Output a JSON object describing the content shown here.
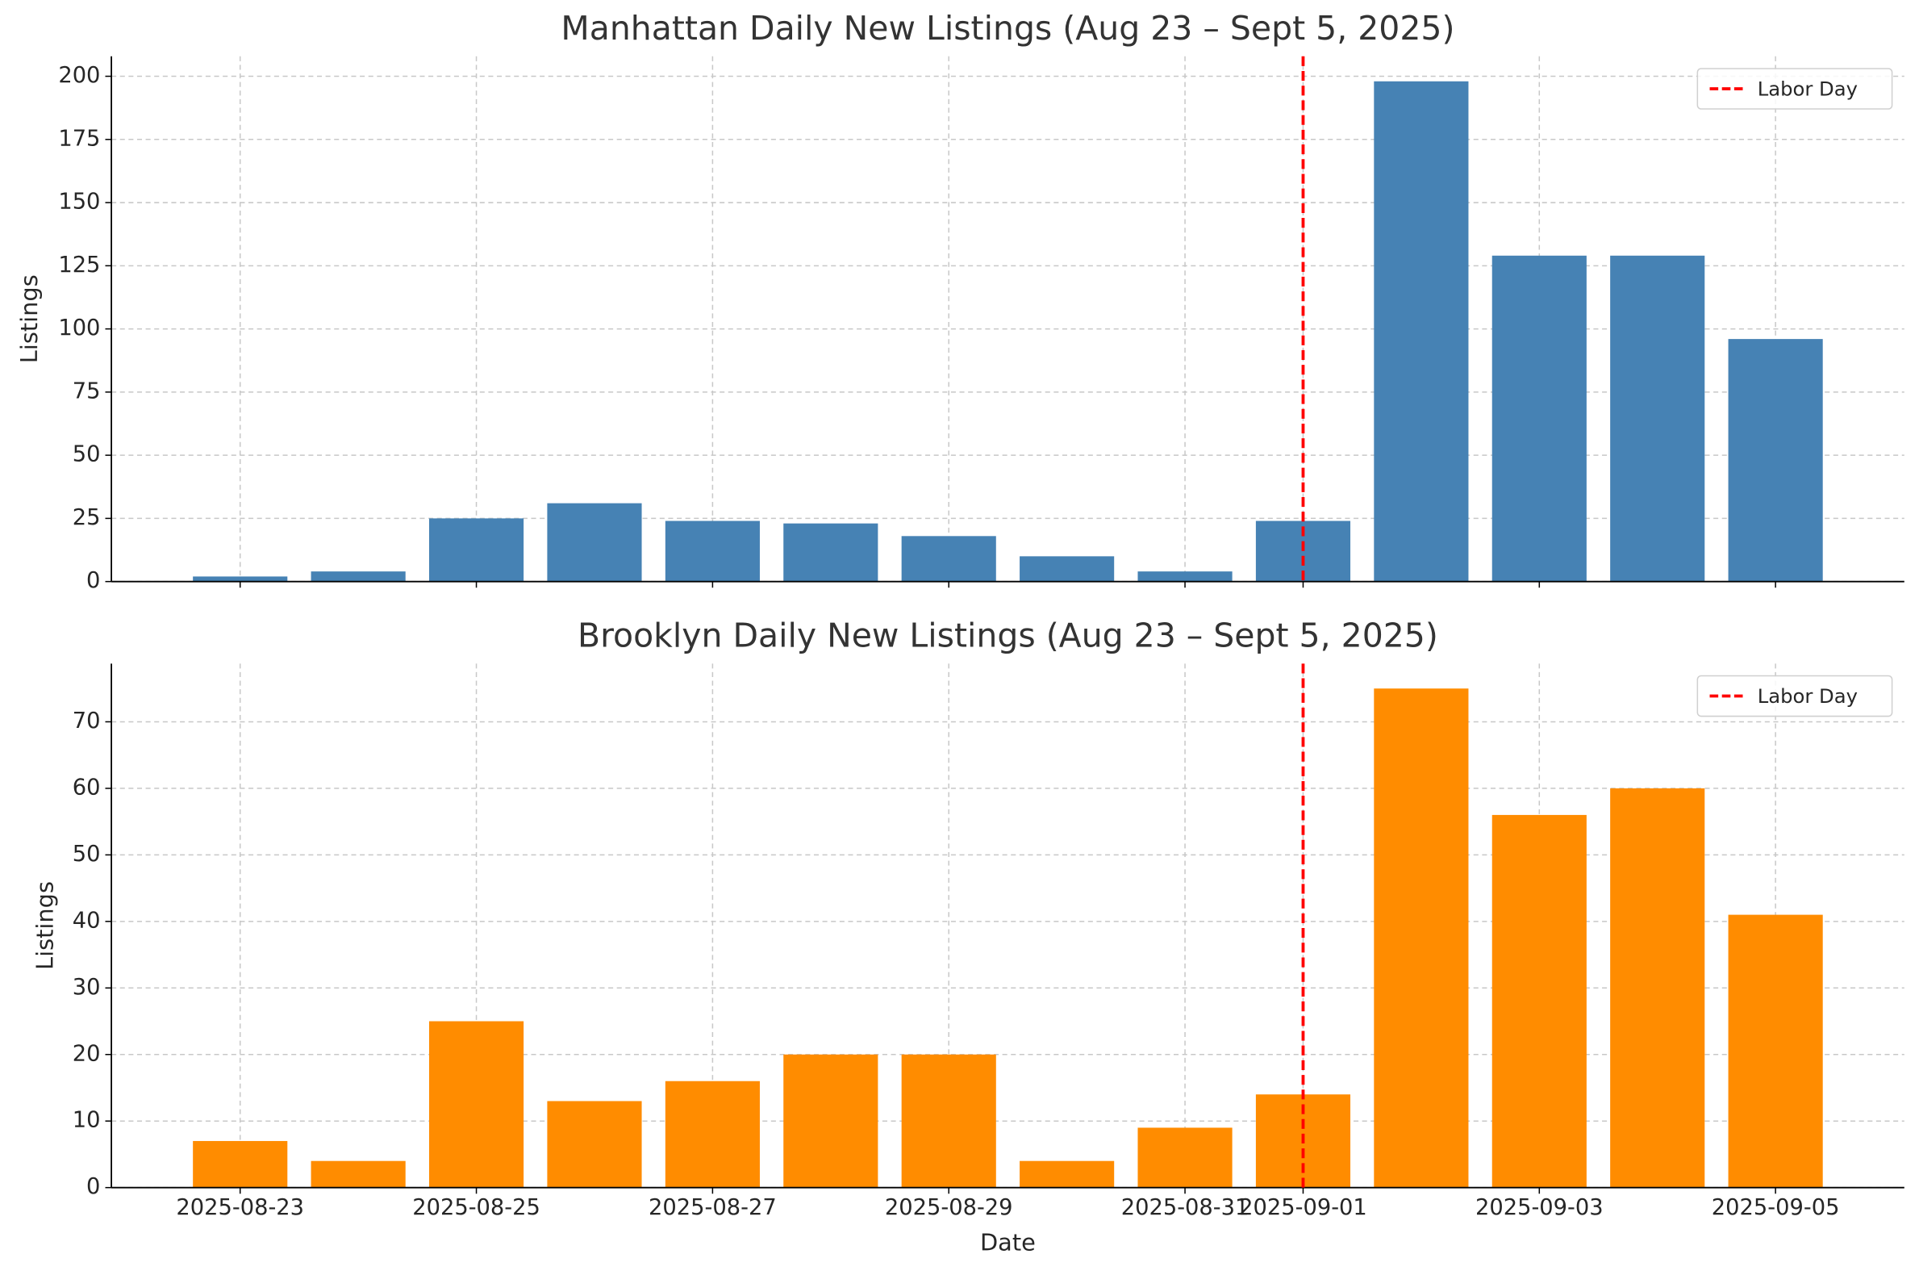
{
  "chart_data": [
    {
      "type": "bar",
      "title": "Manhattan Daily New Listings (Aug 23 – Sept 5, 2025)",
      "ylabel": "Listings",
      "x": [
        "2025-08-23",
        "2025-08-24",
        "2025-08-25",
        "2025-08-26",
        "2025-08-27",
        "2025-08-28",
        "2025-08-29",
        "2025-08-30",
        "2025-08-31",
        "2025-09-01",
        "2025-09-02",
        "2025-09-03",
        "2025-09-04",
        "2025-09-05"
      ],
      "values": [
        2,
        4,
        25,
        31,
        24,
        23,
        18,
        10,
        4,
        24,
        198,
        129,
        129,
        96
      ],
      "color": "#4682b4",
      "xlim": [
        "2025-08-21T21:50:00Z",
        "2025-09-06T02:10:00Z"
      ],
      "xticks": [
        "2025-08-23",
        "2025-08-25",
        "2025-08-27",
        "2025-08-29",
        "2025-08-31",
        "2025-09-01",
        "2025-09-03",
        "2025-09-05"
      ],
      "xticklabels": false,
      "ylim": [
        0,
        207.9
      ],
      "yticks": [
        0,
        25,
        50,
        75,
        100,
        125,
        150,
        175,
        200
      ],
      "grid": true,
      "vline": {
        "x": "2025-09-01",
        "label": "Labor Day",
        "color": "#ff0000"
      },
      "legend": "upper right"
    },
    {
      "type": "bar",
      "title": "Brooklyn Daily New Listings (Aug 23 – Sept 5, 2025)",
      "ylabel": "Listings",
      "xlabel": "Date",
      "x": [
        "2025-08-23",
        "2025-08-24",
        "2025-08-25",
        "2025-08-26",
        "2025-08-27",
        "2025-08-28",
        "2025-08-29",
        "2025-08-30",
        "2025-08-31",
        "2025-09-01",
        "2025-09-02",
        "2025-09-03",
        "2025-09-04",
        "2025-09-05"
      ],
      "values": [
        7,
        4,
        25,
        13,
        16,
        20,
        20,
        4,
        9,
        14,
        75,
        56,
        60,
        41
      ],
      "color": "#ff8c00",
      "xlim": [
        "2025-08-21T21:50:00Z",
        "2025-09-06T02:10:00Z"
      ],
      "xticks": [
        "2025-08-23",
        "2025-08-25",
        "2025-08-27",
        "2025-08-29",
        "2025-08-31",
        "2025-09-01",
        "2025-09-03",
        "2025-09-05"
      ],
      "xticklabels": true,
      "ylim": [
        0,
        78.75
      ],
      "yticks": [
        0,
        10,
        20,
        30,
        40,
        50,
        60,
        70
      ],
      "grid": true,
      "vline": {
        "x": "2025-09-01",
        "label": "Labor Day",
        "color": "#ff0000"
      },
      "legend": "upper right"
    }
  ]
}
